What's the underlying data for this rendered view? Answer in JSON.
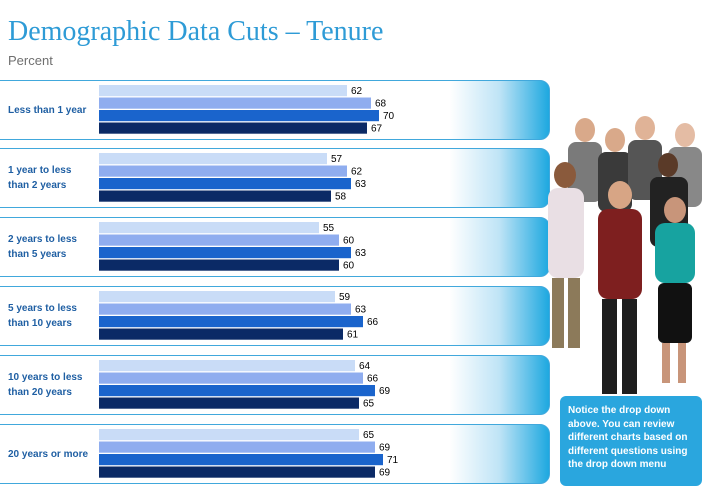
{
  "title": "Demographic Data Cuts – Tenure",
  "subtitle": "Percent",
  "note": "Notice the drop down above. You can review different charts based on different questions using the drop  down menu",
  "colors": {
    "title": "#2e9bd6",
    "band_border": "#41a8dc",
    "label": "#1f5fa3",
    "series": [
      "#c9dcf7",
      "#8fadef",
      "#1a64cc",
      "#0b2a66"
    ],
    "note_bg": "#2aa6de"
  },
  "chart_data": {
    "type": "bar",
    "orientation": "horizontal",
    "title": "Demographic Data Cuts – Tenure",
    "subtitle": "Percent",
    "categories": [
      [
        "Less than 1 year"
      ],
      [
        "1 year to less",
        "than 2 years"
      ],
      [
        "2 years to less",
        "than 5 years"
      ],
      [
        "5 years to less",
        "than 10 years"
      ],
      [
        "10 years to less",
        "than 20 years"
      ],
      [
        "20 years or more"
      ]
    ],
    "series": [
      {
        "values": [
          62,
          57,
          55,
          59,
          64,
          65
        ]
      },
      {
        "values": [
          68,
          62,
          60,
          63,
          66,
          69
        ]
      },
      {
        "values": [
          70,
          63,
          63,
          66,
          69,
          71
        ]
      },
      {
        "values": [
          67,
          58,
          60,
          61,
          65,
          69
        ]
      }
    ],
    "xlim": [
      0,
      100
    ],
    "grid": false,
    "legend": "none"
  }
}
